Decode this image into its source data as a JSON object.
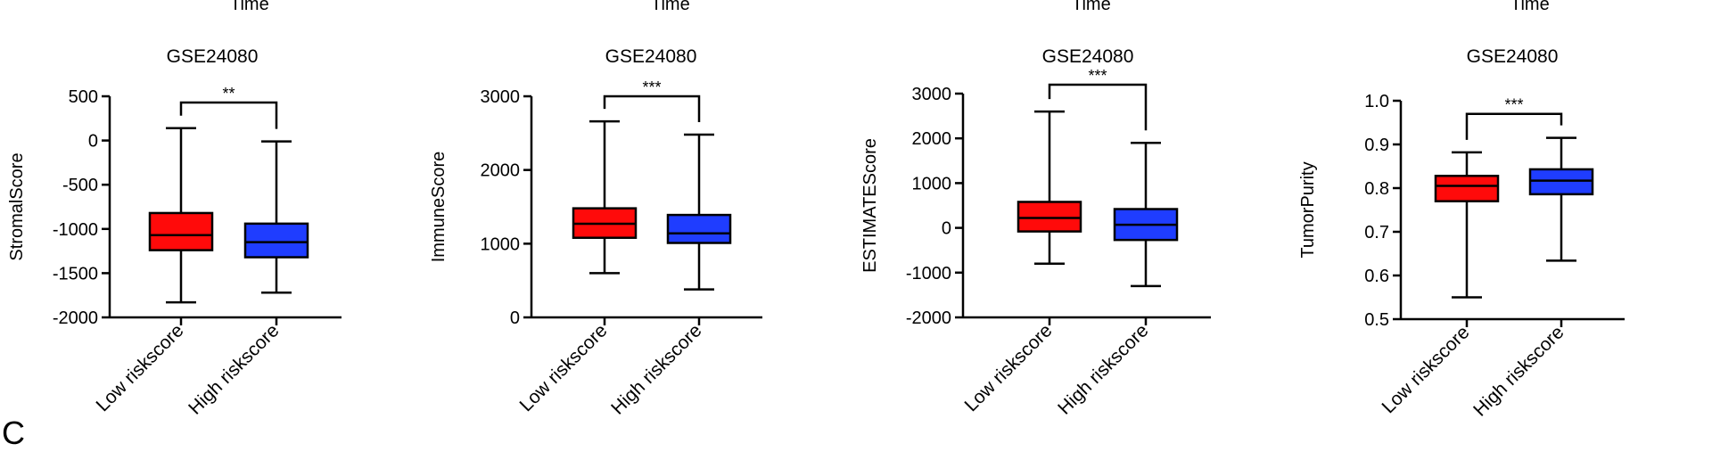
{
  "top_fragments": [
    "Time",
    "Time",
    "Time",
    "Time"
  ],
  "panel_letter_fragment": "C",
  "colors": {
    "low": "#ff0a0a",
    "high": "#1f3dff",
    "ink": "#000000"
  },
  "chart_data": [
    {
      "type": "box",
      "title": "GSE24080",
      "ylabel": "StromalScore",
      "categories": [
        "Low riskscore",
        "High riskscore"
      ],
      "ylim": [
        -2000,
        500
      ],
      "yticks": [
        500,
        0,
        -500,
        -1000,
        -1500,
        -2000
      ],
      "yticklabels": [
        "500",
        "0",
        "-500",
        "-1000",
        "-1500",
        "-2000"
      ],
      "boxes": [
        {
          "min": -1830,
          "q1": -1240,
          "median": -1070,
          "q3": -820,
          "max": 140
        },
        {
          "min": -1720,
          "q1": -1320,
          "median": -1150,
          "q3": -940,
          "max": -10
        }
      ],
      "significance": "**",
      "bracket_y": 430
    },
    {
      "type": "box",
      "title": "GSE24080",
      "ylabel": "ImmuneScore",
      "categories": [
        "Low riskscore",
        "High riskscore"
      ],
      "ylim": [
        0,
        3000
      ],
      "yticks": [
        3000,
        2000,
        1000,
        0
      ],
      "yticklabels": [
        "3000",
        "2000",
        "1000",
        "0"
      ],
      "boxes": [
        {
          "min": 600,
          "q1": 1080,
          "median": 1270,
          "q3": 1480,
          "max": 2660
        },
        {
          "min": 380,
          "q1": 1010,
          "median": 1140,
          "q3": 1390,
          "max": 2480
        }
      ],
      "significance": "***",
      "bracket_y": 3000
    },
    {
      "type": "box",
      "title": "GSE24080",
      "ylabel": "ESTIMATEScore",
      "categories": [
        "Low riskscore",
        "High riskscore"
      ],
      "ylim": [
        -2000,
        3000
      ],
      "yticks": [
        3000,
        2000,
        1000,
        0,
        -1000,
        -2000
      ],
      "yticklabels": [
        "3000",
        "2000",
        "1000",
        "0",
        "-1000",
        "-2000"
      ],
      "boxes": [
        {
          "min": -800,
          "q1": -80,
          "median": 220,
          "q3": 580,
          "max": 2600
        },
        {
          "min": -1300,
          "q1": -270,
          "median": 70,
          "q3": 420,
          "max": 1900
        }
      ],
      "significance": "***",
      "bracket_y": 3200
    },
    {
      "type": "box",
      "title": "GSE24080",
      "ylabel": "TumorPurity",
      "categories": [
        "Low riskscore",
        "High riskscore"
      ],
      "ylim": [
        0.5,
        1.0
      ],
      "yticks": [
        1.0,
        0.9,
        0.8,
        0.7,
        0.6,
        0.5
      ],
      "yticklabels": [
        "1.0",
        "0.9",
        "0.8",
        "0.7",
        "0.6",
        "0.5"
      ],
      "boxes": [
        {
          "min": 0.55,
          "q1": 0.77,
          "median": 0.805,
          "q3": 0.828,
          "max": 0.882
        },
        {
          "min": 0.634,
          "q1": 0.786,
          "median": 0.817,
          "q3": 0.843,
          "max": 0.915
        }
      ],
      "significance": "***",
      "bracket_y": 0.97
    }
  ]
}
